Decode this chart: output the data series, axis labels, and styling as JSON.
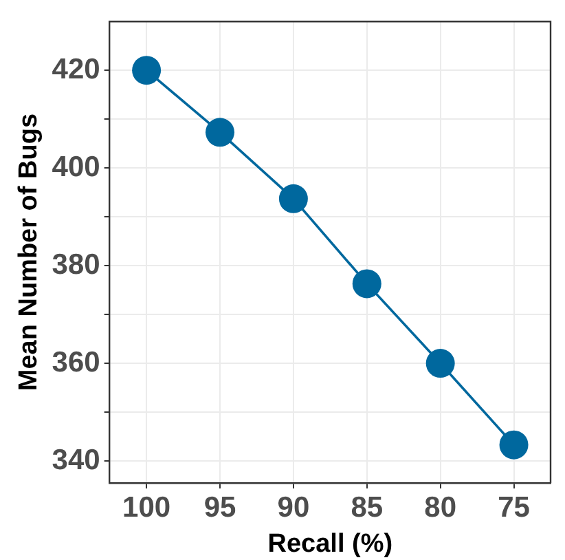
{
  "chart_data": {
    "type": "line",
    "xlabel": "Recall (%)",
    "ylabel": "Mean Number of Bugs",
    "categories": [
      "100",
      "95",
      "90",
      "85",
      "80",
      "75"
    ],
    "series": [
      {
        "color": "#00689e",
        "values": [
          420,
          407.3,
          393.7,
          376.3,
          360,
          343.3
        ]
      }
    ],
    "ylim": [
      335.5,
      430
    ],
    "yticks": [
      340,
      {
        "value": 350,
        "label": null
      },
      360,
      {
        "value": 370,
        "label": null
      },
      380,
      {
        "value": 390,
        "label": null
      },
      400,
      {
        "value": 410,
        "label": null
      },
      420
    ],
    "grid": true,
    "legend": false,
    "marker": "circle",
    "line_style": "solid"
  }
}
